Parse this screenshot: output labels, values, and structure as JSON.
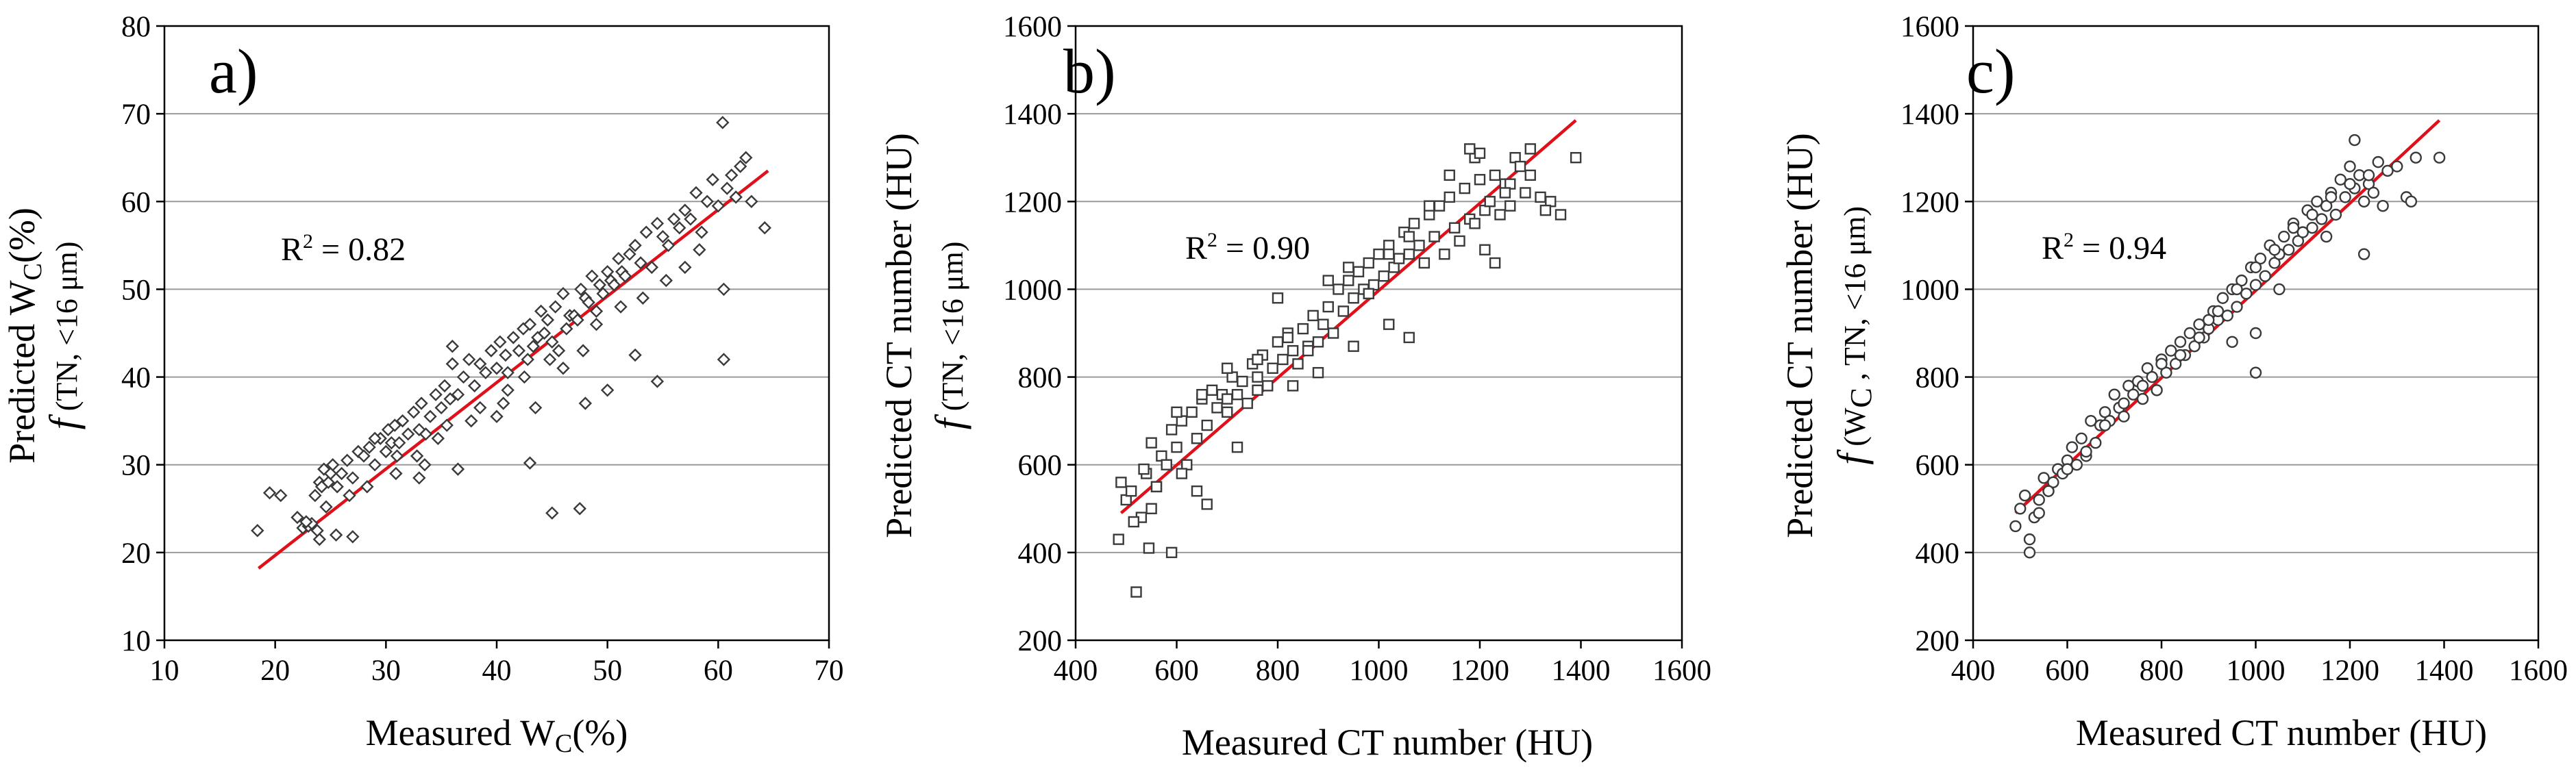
{
  "chart_data": [
    {
      "type": "scatter",
      "panel": "a)",
      "marker": "diamond",
      "xlabel": {
        "main": "Measured W",
        "sub": "C",
        "suffix": "(%)"
      },
      "ylabel": {
        "line1": {
          "main": "Predicted W",
          "sub": "C",
          "suffix": "(%)"
        },
        "line2": {
          "f": "f",
          "text": " (TN, <16 μm)"
        }
      },
      "xlim": [
        10,
        70
      ],
      "ylim": [
        10,
        80
      ],
      "xticks": [
        10,
        20,
        30,
        40,
        50,
        60,
        70
      ],
      "yticks": [
        10,
        20,
        30,
        40,
        50,
        60,
        70,
        80
      ],
      "annotation": {
        "r2_prefix": "R",
        "r2_exp": "2",
        "r2_text": " = 0.82"
      },
      "fit_line": {
        "x": [
          18.5,
          64.5
        ],
        "y": [
          18.2,
          63.5
        ]
      },
      "grid": "horizontal",
      "points": {
        "x": [
          18.4,
          19.5,
          20.5,
          22.0,
          22.5,
          23.0,
          23.3,
          23.6,
          24.0,
          24.2,
          24.4,
          24.6,
          24.8,
          25.0,
          25.2,
          25.6,
          26.0,
          26.5,
          27.0,
          27.5,
          28.0,
          28.5,
          29.0,
          29.5,
          30.0,
          30.2,
          30.5,
          30.8,
          31.0,
          31.5,
          32.0,
          32.5,
          33.0,
          33.2,
          33.6,
          34.0,
          34.5,
          35.0,
          35.3,
          35.8,
          36.0,
          36.5,
          37.0,
          37.5,
          38.0,
          38.5,
          39.0,
          39.5,
          40.0,
          40.3,
          40.8,
          41.0,
          41.5,
          42.0,
          42.4,
          42.8,
          43.0,
          43.3,
          43.7,
          44.0,
          44.3,
          44.6,
          45.0,
          45.3,
          45.6,
          46.0,
          46.3,
          46.6,
          47.0,
          47.3,
          47.6,
          48.0,
          48.3,
          48.6,
          49.0,
          49.3,
          49.6,
          50.0,
          50.3,
          50.6,
          51.0,
          51.3,
          51.6,
          52.0,
          52.5,
          53.0,
          53.5,
          54.0,
          54.5,
          55.0,
          55.5,
          56.0,
          56.5,
          57.0,
          57.5,
          58.0,
          58.5,
          59.0,
          59.5,
          60.0,
          60.4,
          60.8,
          61.2,
          61.6,
          62.0,
          62.5,
          63.0,
          64.2,
          24.0,
          25.5,
          27.0,
          33.0,
          36.5,
          40.0,
          43.0,
          43.5,
          45.0,
          47.5,
          48.0,
          50.0,
          52.5,
          54.5,
          57.0,
          60.5,
          60.5,
          36.0,
          42.5,
          46.0,
          38.5,
          35.5,
          49.0,
          41.0,
          29.0,
          33.5,
          28.3,
          31.2,
          44.8,
          47.8,
          51.2,
          55.3,
          58.3,
          53.2,
          40.6,
          37.7,
          34.7,
          32.8,
          30.9,
          26.7,
          22.8,
          23.8
        ],
        "y": [
          22.5,
          26.8,
          26.5,
          24.0,
          22.8,
          23.0,
          23.3,
          26.5,
          28.0,
          27.5,
          29.5,
          25.2,
          28.0,
          29.0,
          30.0,
          27.5,
          29.0,
          30.5,
          28.5,
          31.5,
          31.0,
          32.0,
          30.0,
          33.0,
          31.5,
          34.0,
          32.5,
          34.5,
          31.0,
          35.0,
          33.5,
          36.0,
          34.0,
          37.0,
          33.5,
          35.5,
          38.0,
          36.5,
          39.0,
          37.5,
          41.5,
          38.0,
          40.0,
          42.0,
          39.0,
          41.5,
          40.5,
          43.0,
          41.0,
          44.0,
          42.5,
          40.5,
          44.5,
          43.0,
          45.5,
          42.0,
          46.0,
          43.5,
          44.5,
          47.5,
          45.0,
          46.5,
          44.0,
          48.0,
          43.0,
          49.5,
          45.5,
          47.0,
          47.0,
          46.5,
          50.0,
          49.0,
          48.5,
          51.5,
          47.5,
          50.5,
          49.5,
          52.0,
          51.0,
          50.5,
          53.5,
          52.0,
          51.5,
          54.0,
          55.0,
          53.0,
          56.5,
          52.5,
          57.5,
          56.0,
          55.0,
          58.0,
          57.0,
          59.0,
          58.0,
          61.0,
          56.5,
          60.0,
          62.5,
          59.5,
          69.0,
          61.5,
          63.0,
          60.5,
          64.0,
          65.0,
          60.0,
          57.0,
          21.5,
          22.0,
          21.8,
          28.5,
          29.5,
          35.5,
          30.2,
          36.5,
          24.5,
          25.0,
          37.0,
          38.5,
          42.5,
          39.5,
          52.5,
          50.0,
          42.0,
          43.5,
          40.0,
          41.0,
          36.5,
          34.5,
          46.0,
          38.5,
          33.0,
          30.0,
          27.5,
          32.5,
          42.0,
          43.0,
          48.0,
          51.0,
          54.5,
          49.0,
          37.0,
          35.0,
          33.0,
          31.0,
          29.0,
          26.5,
          23.5,
          22.5
        ]
      }
    },
    {
      "type": "scatter",
      "panel": "b)",
      "marker": "square",
      "xlabel": {
        "main": "Measured CT number (HU)"
      },
      "ylabel": {
        "line1": {
          "main": "Predicted CT number (HU)"
        },
        "line2": {
          "f": "f",
          "text": " (TN, <16 μm)"
        }
      },
      "xlim": [
        400,
        1600
      ],
      "ylim": [
        200,
        1600
      ],
      "xticks": [
        400,
        600,
        800,
        1000,
        1200,
        1400,
        1600
      ],
      "yticks": [
        200,
        400,
        600,
        800,
        1000,
        1200,
        1400,
        1600
      ],
      "annotation": {
        "r2_prefix": "R",
        "r2_exp": "2",
        "r2_text": " = 0.90"
      },
      "fit_line": {
        "x": [
          490,
          1390
        ],
        "y": [
          490,
          1385
        ]
      },
      "grid": "horizontal",
      "points": {
        "x": [
          485,
          490,
          500,
          510,
          520,
          530,
          540,
          545,
          550,
          560,
          570,
          580,
          590,
          600,
          610,
          620,
          630,
          640,
          650,
          660,
          670,
          680,
          690,
          700,
          710,
          720,
          730,
          740,
          750,
          760,
          770,
          780,
          790,
          800,
          810,
          820,
          830,
          840,
          850,
          860,
          870,
          880,
          890,
          900,
          910,
          920,
          930,
          940,
          950,
          960,
          970,
          980,
          990,
          1000,
          1010,
          1020,
          1030,
          1040,
          1050,
          1060,
          1070,
          1080,
          1090,
          1100,
          1110,
          1120,
          1130,
          1140,
          1150,
          1160,
          1170,
          1180,
          1190,
          1200,
          1210,
          1220,
          1230,
          1240,
          1250,
          1260,
          1270,
          1280,
          1290,
          1300,
          1320,
          1340,
          1360,
          1390,
          515,
          535,
          560,
          590,
          610,
          640,
          660,
          700,
          720,
          760,
          800,
          830,
          860,
          900,
          940,
          980,
          1020,
          1060,
          1100,
          1140,
          1180,
          1200,
          1230,
          1260,
          1300,
          1330,
          1190,
          1210,
          1250,
          1060,
          1020,
          950,
          880,
          820,
          760,
          700,
          650,
          600,
          550
        ],
        "y": [
          430,
          560,
          520,
          540,
          310,
          480,
          580,
          410,
          500,
          550,
          620,
          600,
          680,
          640,
          700,
          600,
          720,
          660,
          750,
          690,
          770,
          730,
          760,
          720,
          800,
          760,
          790,
          740,
          830,
          800,
          850,
          780,
          820,
          880,
          840,
          900,
          860,
          830,
          910,
          870,
          940,
          880,
          920,
          960,
          900,
          1000,
          950,
          1020,
          980,
          1040,
          1000,
          1060,
          1010,
          1080,
          1030,
          1100,
          1050,
          1070,
          1130,
          1080,
          1150,
          1100,
          1060,
          1170,
          1120,
          1190,
          1080,
          1210,
          1140,
          1110,
          1230,
          1160,
          1300,
          1250,
          1180,
          1200,
          1260,
          1170,
          1240,
          1190,
          1300,
          1280,
          1220,
          1260,
          1210,
          1200,
          1170,
          1300,
          470,
          590,
          550,
          400,
          580,
          540,
          510,
          750,
          640,
          770,
          980,
          780,
          860,
          1020,
          1050,
          990,
          1080,
          1120,
          1190,
          1260,
          1320,
          1310,
          1060,
          1240,
          1320,
          1180,
          1150,
          1090,
          1220,
          890,
          920,
          870,
          810,
          890,
          840,
          820,
          760,
          720,
          650
        ]
      }
    },
    {
      "type": "scatter",
      "panel": "c)",
      "marker": "circle",
      "xlabel": {
        "main": "Measured CT number (HU)"
      },
      "ylabel": {
        "line1": {
          "main": "Predicted CT number (HU)"
        },
        "line2": {
          "f": "f",
          "text": " (W",
          "sub": "C",
          "text2": " , TN, <16 μm)"
        }
      },
      "xlim": [
        400,
        1600
      ],
      "ylim": [
        200,
        1600
      ],
      "xticks": [
        400,
        600,
        800,
        1000,
        1200,
        1400,
        1600
      ],
      "yticks": [
        200,
        400,
        600,
        800,
        1000,
        1200,
        1400,
        1600
      ],
      "annotation": {
        "r2_prefix": "R",
        "r2_exp": "2",
        "r2_text": " = 0.94"
      },
      "fit_line": {
        "x": [
          490,
          1390
        ],
        "y": [
          490,
          1385
        ]
      },
      "grid": "horizontal",
      "points": {
        "x": [
          490,
          500,
          510,
          520,
          530,
          540,
          550,
          560,
          570,
          580,
          590,
          600,
          610,
          620,
          630,
          640,
          650,
          660,
          670,
          680,
          690,
          700,
          710,
          720,
          730,
          740,
          750,
          760,
          770,
          780,
          790,
          800,
          810,
          820,
          830,
          840,
          850,
          860,
          870,
          880,
          890,
          900,
          910,
          920,
          930,
          940,
          950,
          960,
          970,
          980,
          990,
          1000,
          1010,
          1020,
          1030,
          1040,
          1050,
          1060,
          1070,
          1080,
          1090,
          1100,
          1110,
          1120,
          1130,
          1140,
          1150,
          1160,
          1170,
          1180,
          1190,
          1200,
          1210,
          1220,
          1230,
          1240,
          1250,
          1260,
          1280,
          1300,
          1320,
          1340,
          1390,
          520,
          540,
          560,
          600,
          640,
          680,
          720,
          760,
          800,
          840,
          880,
          920,
          960,
          1000,
          1040,
          1080,
          1120,
          1160,
          1200,
          1240,
          1210,
          1000,
          1000,
          950,
          900,
          1050,
          1150,
          1230,
          1270,
          1330
        ],
        "y": [
          460,
          500,
          530,
          400,
          480,
          520,
          570,
          540,
          560,
          590,
          580,
          610,
          640,
          600,
          660,
          620,
          700,
          650,
          690,
          720,
          700,
          760,
          730,
          710,
          780,
          760,
          790,
          750,
          820,
          800,
          770,
          840,
          810,
          860,
          830,
          880,
          850,
          900,
          870,
          920,
          890,
          910,
          950,
          930,
          980,
          940,
          1000,
          960,
          1020,
          990,
          1050,
          1010,
          1070,
          1030,
          1100,
          1060,
          1080,
          1120,
          1090,
          1150,
          1110,
          1130,
          1180,
          1140,
          1200,
          1160,
          1190,
          1220,
          1170,
          1250,
          1210,
          1280,
          1230,
          1260,
          1200,
          1240,
          1220,
          1290,
          1270,
          1280,
          1210,
          1300,
          1300,
          430,
          490,
          540,
          590,
          630,
          690,
          740,
          780,
          830,
          850,
          890,
          950,
          1000,
          1050,
          1090,
          1140,
          1170,
          1210,
          1240,
          1260,
          1340,
          810,
          900,
          880,
          930,
          1000,
          1120,
          1080,
          1190,
          1200
        ]
      }
    }
  ]
}
